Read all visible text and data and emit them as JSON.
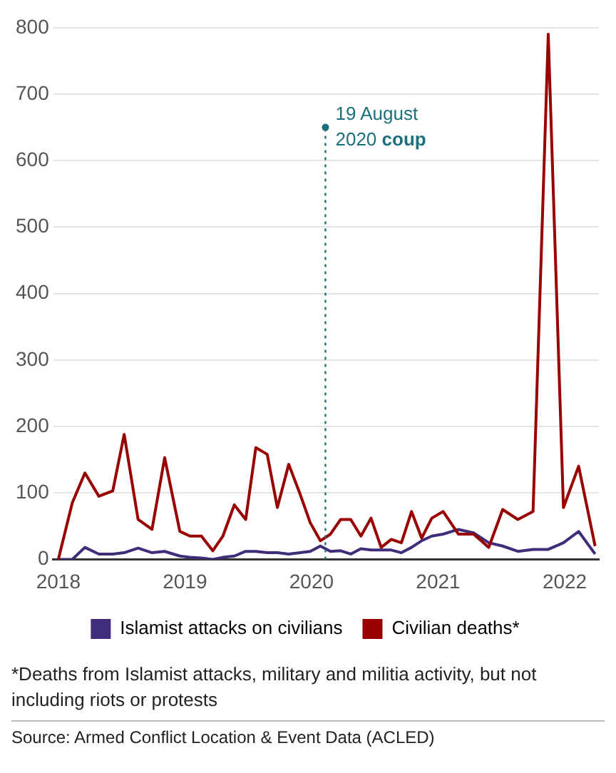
{
  "chart_data": {
    "type": "line",
    "x": [
      2018.0,
      2018.11,
      2018.21,
      2018.32,
      2018.43,
      2018.52,
      2018.63,
      2018.74,
      2018.84,
      2018.96,
      2019.04,
      2019.13,
      2019.22,
      2019.3,
      2019.39,
      2019.48,
      2019.56,
      2019.65,
      2019.73,
      2019.82,
      2019.91,
      2019.99,
      2020.07,
      2020.15,
      2020.23,
      2020.31,
      2020.39,
      2020.47,
      2020.55,
      2020.63,
      2020.71,
      2020.79,
      2020.87,
      2020.95,
      2021.04,
      2021.16,
      2021.28,
      2021.4,
      2021.51,
      2021.63,
      2021.75,
      2021.87,
      2021.99,
      2022.11,
      2022.24
    ],
    "series": [
      {
        "name": "Islamist attacks on civilians",
        "color": "#3f2d7a",
        "values": [
          0,
          0,
          18,
          8,
          8,
          10,
          17,
          10,
          12,
          5,
          3,
          2,
          0,
          3,
          5,
          12,
          12,
          10,
          10,
          8,
          10,
          12,
          20,
          12,
          13,
          8,
          16,
          14,
          14,
          14,
          10,
          18,
          28,
          35,
          38,
          45,
          40,
          25,
          20,
          12,
          15,
          15,
          25,
          42,
          8
        ]
      },
      {
        "name": "Civilian deaths*",
        "color": "#990000",
        "values": [
          0,
          85,
          130,
          95,
          103,
          188,
          60,
          45,
          153,
          42,
          35,
          35,
          13,
          35,
          82,
          60,
          168,
          158,
          78,
          143,
          98,
          55,
          28,
          38,
          60,
          60,
          35,
          62,
          18,
          30,
          25,
          72,
          32,
          62,
          72,
          38,
          38,
          18,
          75,
          60,
          72,
          790,
          78,
          140,
          20
        ]
      }
    ],
    "xlim": [
      2017.96,
      2022.27
    ],
    "xticks": [
      2018,
      2019,
      2020,
      2021,
      2022
    ],
    "ylim": [
      0,
      800
    ],
    "yticks": [
      0,
      100,
      200,
      300,
      400,
      500,
      600,
      700,
      800
    ],
    "grid": "y",
    "legend": "bottom",
    "marker": "none",
    "line_style": "solid",
    "ref_lines": [
      {
        "axis": "x",
        "value": 2020.11,
        "color": "#1d6f7a",
        "line_style": "dotted"
      }
    ],
    "annotations": [
      {
        "text": "19 August 2020 coup",
        "x": 2020.11,
        "y": 650
      },
      "*Deaths from Islamist attacks, military and militia activity, but not including riots or protests",
      "Source: Armed Conflict Location & Event Data (ACLED)"
    ]
  }
}
